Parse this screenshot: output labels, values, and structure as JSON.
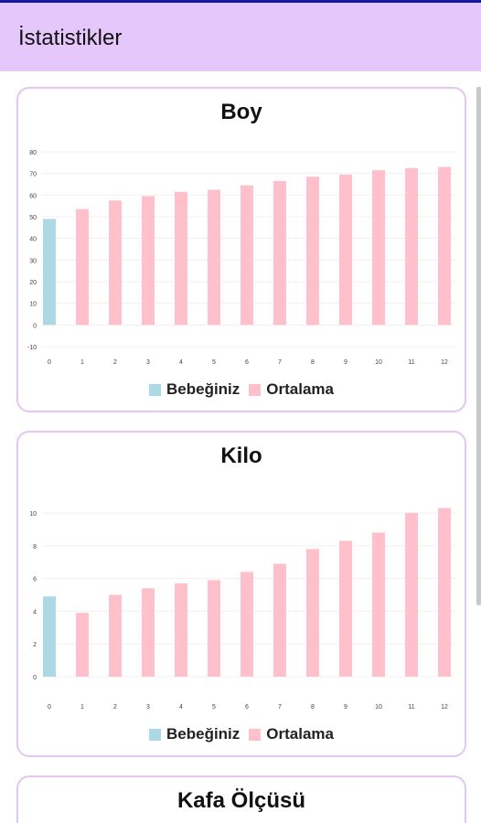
{
  "app": {
    "title": "İstatistikler"
  },
  "colors": {
    "baby": "#add8e6",
    "average": "#ffc0cb",
    "accent": "#e6c7fb",
    "border": "#e3c6f3"
  },
  "legend": {
    "baby": "Bebeğiniz",
    "average": "Ortalama"
  },
  "chart_data": [
    {
      "type": "bar",
      "title": "Boy",
      "categories": [
        "0",
        "1",
        "2",
        "3",
        "4",
        "5",
        "6",
        "7",
        "8",
        "9",
        "10",
        "11",
        "12"
      ],
      "ylim": [
        -10,
        80
      ],
      "yticks": [
        "-10",
        "0",
        "10",
        "20",
        "30",
        "40",
        "50",
        "60",
        "70",
        "80"
      ],
      "series": [
        {
          "name": "Bebeğiniz",
          "values": [
            49,
            null,
            null,
            null,
            null,
            null,
            null,
            null,
            null,
            null,
            null,
            null,
            null
          ]
        },
        {
          "name": "Ortalama",
          "values": [
            null,
            53.5,
            57.5,
            59.5,
            61.5,
            62.5,
            64.5,
            66.5,
            68.5,
            69.5,
            71.5,
            72.5,
            73
          ]
        }
      ]
    },
    {
      "type": "bar",
      "title": "Kilo",
      "categories": [
        "0",
        "1",
        "2",
        "3",
        "4",
        "5",
        "6",
        "7",
        "8",
        "9",
        "10",
        "11",
        "12"
      ],
      "ylim": [
        0,
        10.5
      ],
      "yticks": [
        "0",
        "2",
        "4",
        "6",
        "8",
        "10"
      ],
      "series": [
        {
          "name": "Bebeğiniz",
          "values": [
            4.9,
            null,
            null,
            null,
            null,
            null,
            null,
            null,
            null,
            null,
            null,
            null,
            null
          ]
        },
        {
          "name": "Ortalama",
          "values": [
            null,
            3.9,
            5.0,
            5.4,
            5.7,
            5.9,
            6.4,
            6.9,
            7.8,
            8.3,
            8.8,
            10.0,
            10.3
          ]
        }
      ]
    },
    {
      "type": "bar",
      "title": "Kafa Ölçüsü"
    }
  ]
}
